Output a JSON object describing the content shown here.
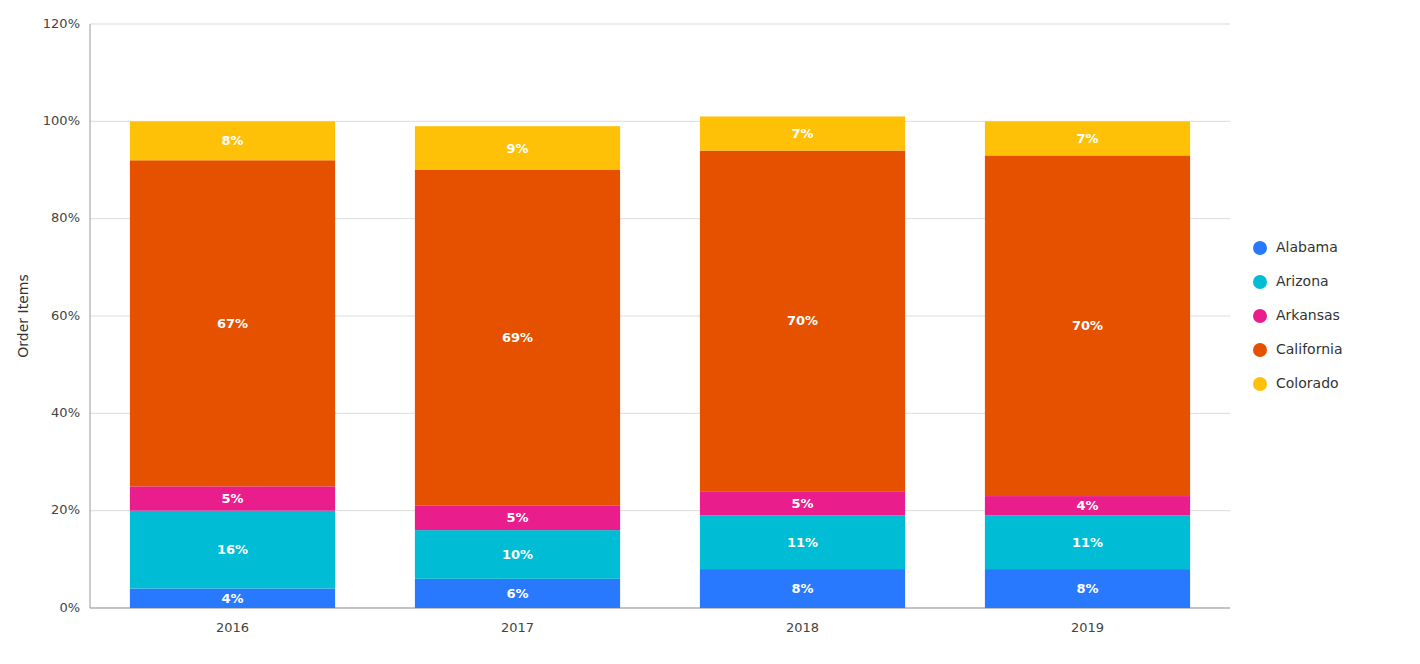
{
  "chart_data": {
    "type": "bar",
    "stacked": true,
    "data_labels": true,
    "grid": true,
    "legend": "right",
    "ylabel": "Order Items",
    "categories": [
      "2016",
      "2017",
      "2018",
      "2019"
    ],
    "series": [
      {
        "name": "Alabama",
        "color": "#2979FF",
        "values": [
          4,
          6,
          8,
          8
        ],
        "value_labels": [
          "4%",
          "6%",
          "8%",
          "8%"
        ]
      },
      {
        "name": "Arizona",
        "color": "#00BCD4",
        "values": [
          16,
          10,
          11,
          11
        ],
        "value_labels": [
          "16%",
          "10%",
          "11%",
          "11%"
        ]
      },
      {
        "name": "Arkansas",
        "color": "#E91E8C",
        "values": [
          5,
          5,
          5,
          4
        ],
        "value_labels": [
          "5%",
          "5%",
          "5%",
          "4%"
        ]
      },
      {
        "name": "California",
        "color": "#E65100",
        "values": [
          67,
          69,
          70,
          70
        ],
        "value_labels": [
          "67%",
          "69%",
          "70%",
          "70%"
        ]
      },
      {
        "name": "Colorado",
        "color": "#FFC107",
        "values": [
          8,
          9,
          7,
          7
        ],
        "value_labels": [
          "8%",
          "9%",
          "7%",
          "7%"
        ]
      }
    ],
    "ylim": [
      0,
      120
    ],
    "yticks": [
      {
        "value": 0,
        "label": "0%"
      },
      {
        "value": 20,
        "label": "20%"
      },
      {
        "value": 40,
        "label": "40%"
      },
      {
        "value": 60,
        "label": "60%"
      },
      {
        "value": 80,
        "label": "80%"
      },
      {
        "value": 100,
        "label": "100%"
      },
      {
        "value": 120,
        "label": "120%"
      }
    ]
  }
}
